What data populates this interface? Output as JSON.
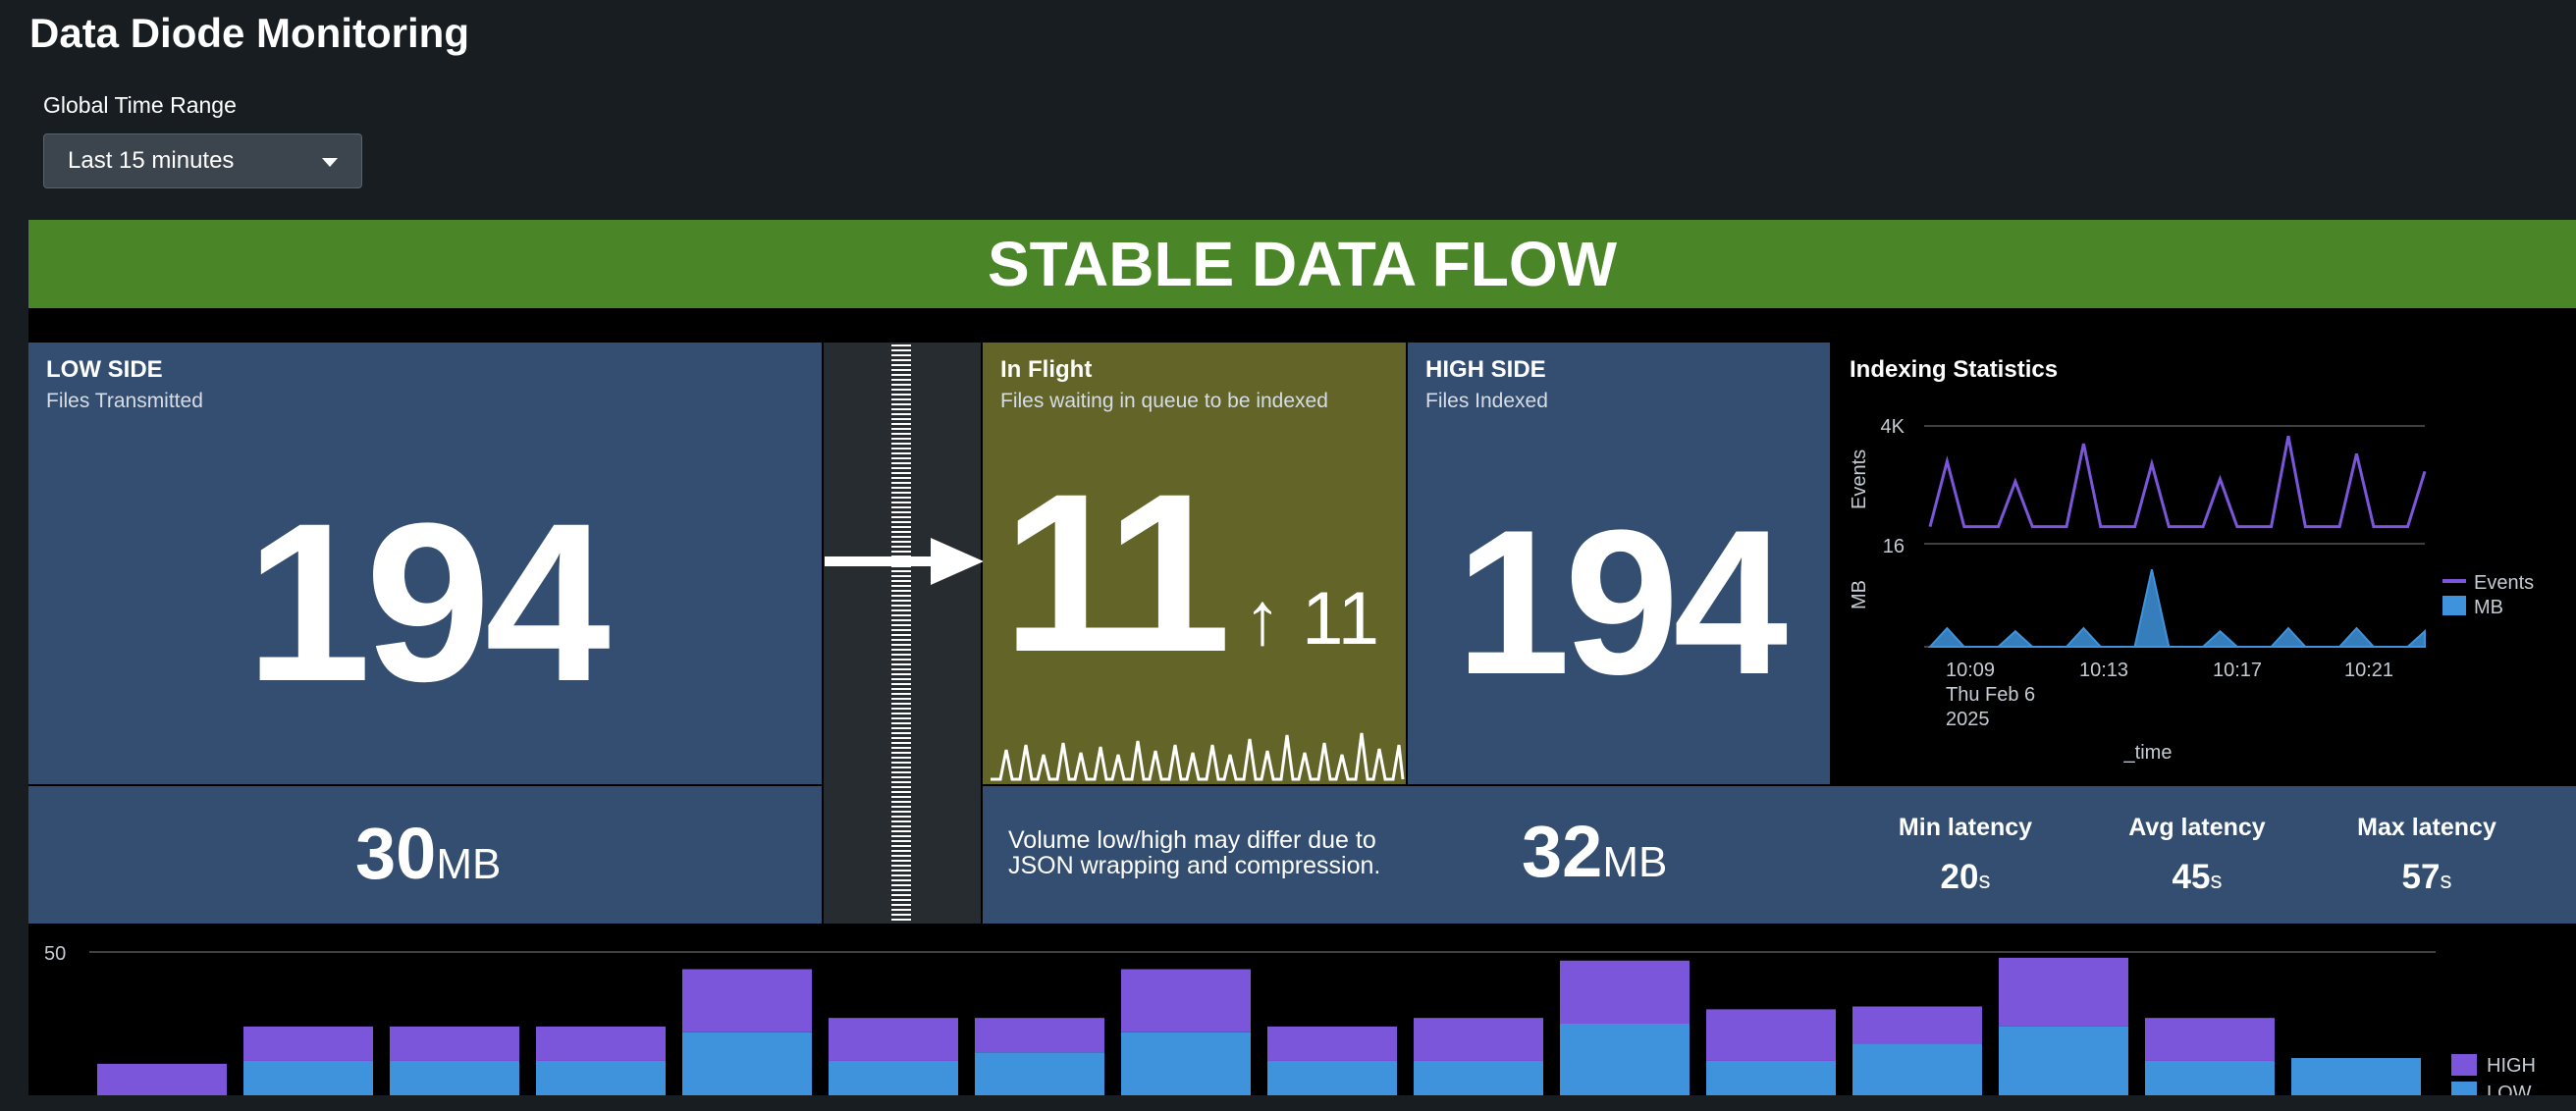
{
  "page": {
    "title": "Data Diode Monitoring"
  },
  "time_range": {
    "label": "Global Time Range",
    "value": "Last 15 minutes"
  },
  "status": {
    "text": "STABLE DATA FLOW",
    "color": "#4a8628"
  },
  "low_side": {
    "title": "LOW SIDE",
    "subtitle": "Files Transmitted",
    "count": "194",
    "volume": "30",
    "volume_unit": "MB"
  },
  "in_flight": {
    "title": "In Flight",
    "subtitle": "Files waiting in queue to be indexed",
    "count": "11",
    "delta_arrow": "↑",
    "delta": "11",
    "color": "#636428"
  },
  "high_side": {
    "title": "HIGH SIDE",
    "subtitle": "Files Indexed",
    "count": "194",
    "volume": "32",
    "volume_unit": "MB"
  },
  "note": {
    "line1": "Volume low/high may differ due to",
    "line2": "JSON wrapping and compression."
  },
  "latency": [
    {
      "label": "Min latency",
      "value": "20",
      "unit": "s"
    },
    {
      "label": "Avg latency",
      "value": "45",
      "unit": "s"
    },
    {
      "label": "Max latency",
      "value": "57",
      "unit": "s"
    }
  ],
  "chart_data": [
    {
      "type": "line",
      "title": "Indexing Statistics",
      "xlabel": "_time",
      "x_ticks": [
        "10:09",
        "10:13",
        "10:17",
        "10:21"
      ],
      "x_tick_sub": [
        "Thu Feb 6",
        "2025"
      ],
      "series": [
        {
          "name": "Events",
          "color": "#7b56db",
          "ylabel": "Events",
          "y_ticks": [
            "4K",
            "16"
          ],
          "values": [
            16,
            2600,
            16,
            16,
            16,
            1800,
            16,
            16,
            16,
            3300,
            16,
            16,
            16,
            2500,
            16,
            16,
            16,
            1900,
            16,
            16,
            16,
            3600,
            16,
            16,
            16,
            2900,
            16,
            16,
            16,
            2200
          ]
        },
        {
          "name": "MB",
          "color": "#3e93dc",
          "ylabel": "MB",
          "values": [
            0,
            0.6,
            0,
            0,
            0,
            0.5,
            0,
            0,
            0,
            0.6,
            0,
            0,
            0,
            2.5,
            0,
            0,
            0,
            0.5,
            0,
            0,
            0,
            0.6,
            0,
            0,
            0,
            0.6,
            0,
            0,
            0,
            0.5
          ]
        }
      ]
    },
    {
      "type": "bar",
      "stacked": true,
      "ylim": [
        0,
        50
      ],
      "y_ticks": [
        "50"
      ],
      "series": [
        {
          "name": "HIGH",
          "color": "#7b56db",
          "values": [
            11,
            12,
            12,
            12,
            22,
            15,
            12,
            22,
            12,
            15,
            22,
            18,
            13,
            24,
            15,
            0
          ]
        },
        {
          "name": "LOW",
          "color": "#3e93dc",
          "values": [
            0,
            12,
            12,
            12,
            22,
            12,
            15,
            22,
            12,
            12,
            25,
            12,
            18,
            24,
            12,
            13
          ]
        }
      ]
    }
  ]
}
